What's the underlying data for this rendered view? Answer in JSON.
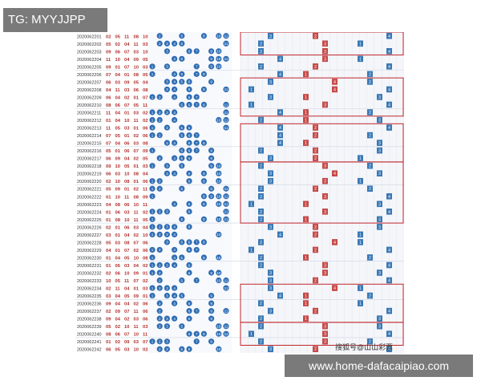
{
  "top_tag": "TG: MYYJJPP",
  "bottom_tag": "www.home-dafacaipiao.com",
  "watermark": "搜狐号@山山彩票",
  "colors": {
    "blue_ball": "#2f6db3",
    "red_text": "#b0302e",
    "red_box": "#c1272d",
    "trend_blue": "#3a78b5",
    "trend_red": "#c64a48"
  },
  "rows": [
    {
      "period": "2020062201",
      "nums": [
        "02",
        "05",
        "11",
        "08",
        "10"
      ]
    },
    {
      "period": "2020062202",
      "nums": [
        "05",
        "02",
        "04",
        "11",
        "03"
      ]
    },
    {
      "period": "2020062203",
      "nums": [
        "09",
        "06",
        "07",
        "03",
        "10"
      ]
    },
    {
      "period": "2020062204",
      "nums": [
        "11",
        "10",
        "04",
        "09",
        "05"
      ]
    },
    {
      "period": "2020062205",
      "nums": [
        "09",
        "01",
        "07",
        "10",
        "03"
      ]
    },
    {
      "period": "2020062206",
      "nums": [
        "07",
        "04",
        "01",
        "08",
        "05"
      ]
    },
    {
      "period": "2020062207",
      "nums": [
        "06",
        "03",
        "09",
        "05",
        "04"
      ]
    },
    {
      "period": "2020062208",
      "nums": [
        "04",
        "11",
        "03",
        "06",
        "08"
      ]
    },
    {
      "period": "2020062209",
      "nums": [
        "06",
        "04",
        "02",
        "01",
        "07"
      ]
    },
    {
      "period": "2020062210",
      "nums": [
        "08",
        "06",
        "07",
        "05",
        "11"
      ]
    },
    {
      "period": "2020062211",
      "nums": [
        "11",
        "04",
        "01",
        "03",
        "02"
      ]
    },
    {
      "period": "2020062212",
      "nums": [
        "01",
        "04",
        "10",
        "11",
        "02"
      ]
    },
    {
      "period": "2020062213",
      "nums": [
        "11",
        "05",
        "03",
        "01",
        "06"
      ]
    },
    {
      "period": "2020062214",
      "nums": [
        "07",
        "05",
        "01",
        "02",
        "06"
      ]
    },
    {
      "period": "2020062215",
      "nums": [
        "07",
        "04",
        "06",
        "03",
        "08"
      ]
    },
    {
      "period": "2020062216",
      "nums": [
        "05",
        "01",
        "06",
        "07",
        "09"
      ]
    },
    {
      "period": "2020062217",
      "nums": [
        "06",
        "09",
        "04",
        "02",
        "05"
      ]
    },
    {
      "period": "2020062218",
      "nums": [
        "09",
        "10",
        "05",
        "01",
        "03"
      ]
    },
    {
      "period": "2020062219",
      "nums": [
        "06",
        "03",
        "10",
        "08",
        "04"
      ]
    },
    {
      "period": "2020062220",
      "nums": [
        "02",
        "10",
        "08",
        "01",
        "06"
      ]
    },
    {
      "period": "2020062221",
      "nums": [
        "05",
        "09",
        "01",
        "02",
        "11"
      ]
    },
    {
      "period": "2020062222",
      "nums": [
        "01",
        "10",
        "11",
        "08",
        "09"
      ]
    },
    {
      "period": "2020062223",
      "nums": [
        "04",
        "08",
        "06",
        "10",
        "11"
      ]
    },
    {
      "period": "2020062224",
      "nums": [
        "01",
        "06",
        "03",
        "11",
        "02"
      ]
    },
    {
      "period": "2020062225",
      "nums": [
        "01",
        "08",
        "10",
        "11",
        "05"
      ]
    },
    {
      "period": "2020062226",
      "nums": [
        "02",
        "01",
        "06",
        "03",
        "04"
      ]
    },
    {
      "period": "2020062227",
      "nums": [
        "03",
        "01",
        "04",
        "02",
        "10"
      ]
    },
    {
      "period": "2020062228",
      "nums": [
        "05",
        "03",
        "08",
        "07",
        "06"
      ]
    },
    {
      "period": "2020062229",
      "nums": [
        "04",
        "01",
        "07",
        "02",
        "06"
      ]
    },
    {
      "period": "2020062230",
      "nums": [
        "01",
        "04",
        "05",
        "10",
        "08"
      ]
    },
    {
      "period": "2020062231",
      "nums": [
        "01",
        "06",
        "03",
        "04",
        "02"
      ]
    },
    {
      "period": "2020062232",
      "nums": [
        "02",
        "06",
        "10",
        "09",
        "01"
      ]
    },
    {
      "period": "2020062233",
      "nums": [
        "10",
        "05",
        "11",
        "07",
        "02"
      ]
    },
    {
      "period": "2020062234",
      "nums": [
        "02",
        "11",
        "04",
        "01",
        "03"
      ]
    },
    {
      "period": "2020062235",
      "nums": [
        "03",
        "04",
        "05",
        "09",
        "01"
      ]
    },
    {
      "period": "2020062236",
      "nums": [
        "09",
        "04",
        "04",
        "02",
        "06"
      ]
    },
    {
      "period": "2020062237",
      "nums": [
        "02",
        "09",
        "07",
        "11",
        "06"
      ]
    },
    {
      "period": "2020062238",
      "nums": [
        "09",
        "04",
        "02",
        "03",
        "06"
      ]
    },
    {
      "period": "2020062239",
      "nums": [
        "05",
        "02",
        "10",
        "11",
        "03"
      ]
    },
    {
      "period": "2020062240",
      "nums": [
        "08",
        "06",
        "07",
        "10",
        "11"
      ]
    },
    {
      "period": "2020062241",
      "nums": [
        "01",
        "02",
        "09",
        "03",
        "07"
      ]
    },
    {
      "period": "2020062242",
      "nums": [
        "06",
        "05",
        "03",
        "10",
        "02"
      ]
    }
  ]
}
